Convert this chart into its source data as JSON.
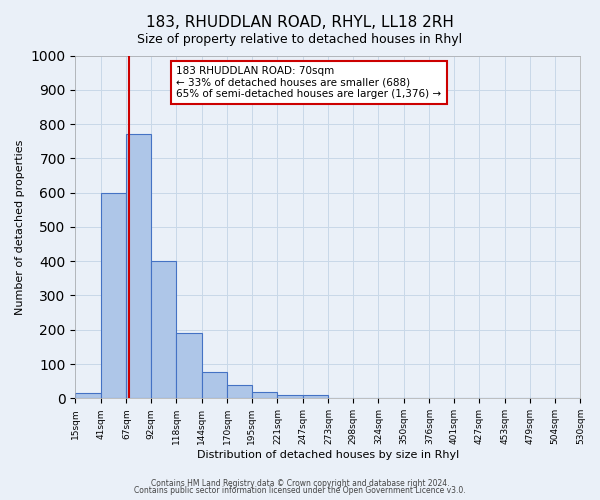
{
  "title": "183, RHUDDLAN ROAD, RHYL, LL18 2RH",
  "subtitle": "Size of property relative to detached houses in Rhyl",
  "xlabel": "Distribution of detached houses by size in Rhyl",
  "ylabel": "Number of detached properties",
  "bar_edges": [
    15,
    41,
    67,
    92,
    118,
    144,
    170,
    195,
    221,
    247,
    273,
    298,
    324,
    350,
    376,
    401,
    427,
    453,
    479,
    504,
    530
  ],
  "bar_heights": [
    15,
    600,
    770,
    400,
    190,
    78,
    40,
    18,
    10,
    10,
    0,
    0,
    0,
    0,
    0,
    0,
    0,
    0,
    0,
    0
  ],
  "bar_color": "#aec6e8",
  "bar_edge_color": "#4472c4",
  "bar_edge_width": 0.8,
  "grid_color": "#c8d8e8",
  "background_color": "#eaf0f8",
  "vline_x": 70,
  "vline_color": "#cc0000",
  "annotation_text": "183 RHUDDLAN ROAD: 70sqm\n← 33% of detached houses are smaller (688)\n65% of semi-detached houses are larger (1,376) →",
  "annotation_box_color": "#cc0000",
  "annotation_bg": "#ffffff",
  "ylim": [
    0,
    1000
  ],
  "yticks": [
    0,
    100,
    200,
    300,
    400,
    500,
    600,
    700,
    800,
    900,
    1000
  ],
  "footer1": "Contains HM Land Registry data © Crown copyright and database right 2024.",
  "footer2": "Contains public sector information licensed under the Open Government Licence v3.0."
}
